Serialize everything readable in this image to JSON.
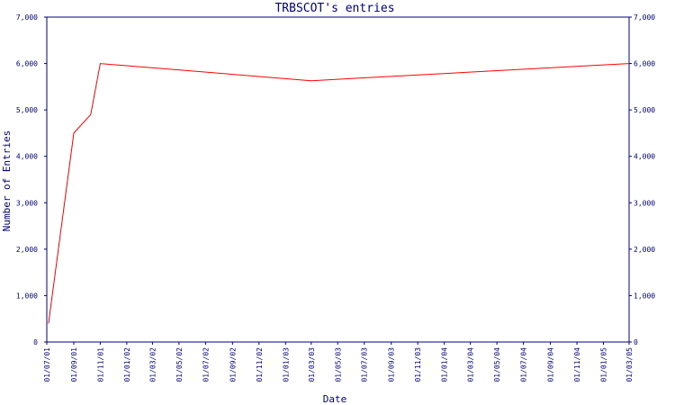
{
  "chart_data": {
    "type": "line",
    "title": "TRBSCOT's entries",
    "xlabel": "Date",
    "ylabel": "Number of Entries",
    "ylim": [
      0,
      7000
    ],
    "y_ticks": [
      "0",
      "1,000",
      "2,000",
      "3,000",
      "4,000",
      "5,000",
      "6,000",
      "7,000"
    ],
    "y_tick_values": [
      0,
      1000,
      2000,
      3000,
      4000,
      5000,
      6000,
      7000
    ],
    "x_ticks": [
      "01/07/01",
      "01/09/01",
      "01/11/01",
      "01/01/02",
      "01/03/02",
      "01/05/02",
      "01/07/02",
      "01/09/02",
      "01/11/02",
      "01/01/03",
      "01/03/03",
      "01/05/03",
      "01/07/03",
      "01/09/03",
      "01/11/03",
      "01/01/04",
      "01/03/04",
      "01/05/04",
      "01/07/04",
      "01/09/04",
      "01/11/04",
      "01/01/05",
      "01/03/05"
    ],
    "grid": false,
    "line_color": "#ff0000",
    "axis_color": "#000080",
    "series": [
      {
        "points": [
          {
            "x": "2001-07-05",
            "y": 400
          },
          {
            "x": "2001-09-01",
            "y": 4500
          },
          {
            "x": "2001-10-10",
            "y": 4900
          },
          {
            "x": "2001-11-01",
            "y": 6000
          },
          {
            "x": "2003-03-01",
            "y": 5630
          },
          {
            "x": "2005-03-01",
            "y": 6000
          }
        ]
      }
    ]
  }
}
